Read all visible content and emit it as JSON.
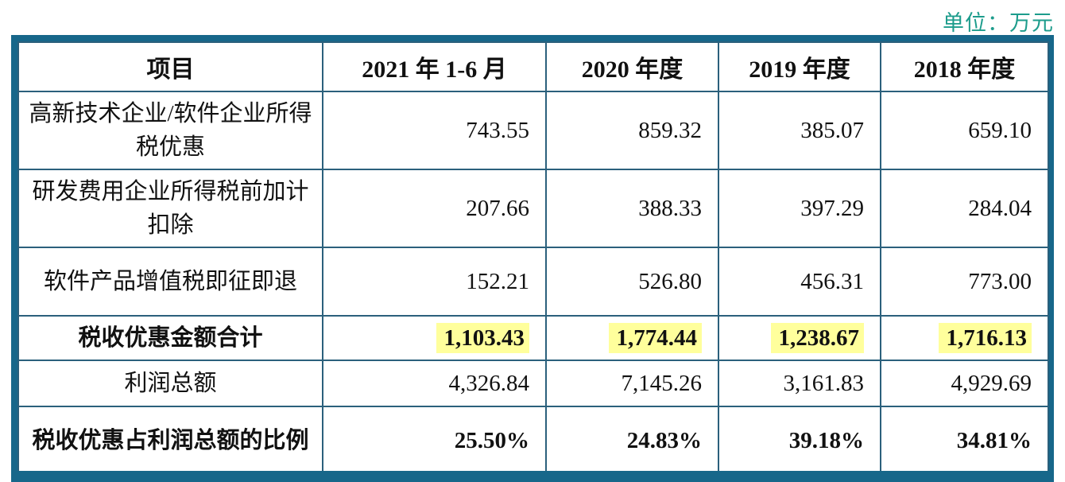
{
  "page": {
    "unit_label": "单位：万元"
  },
  "colors": {
    "table_outer_border": "#17678a",
    "table_inner_border": "#2b607c",
    "unit_text": "#1d9c8c",
    "highlight": "#ffff9c",
    "background": "#ffffff",
    "text": "#111111"
  },
  "table": {
    "columns": [
      "项目",
      "2021 年 1-6 月",
      "2020 年度",
      "2019 年度",
      "2018 年度"
    ],
    "rows": [
      {
        "label": "高新技术企业/软件企业所得税优惠",
        "values": [
          "743.55",
          "859.32",
          "385.07",
          "659.10"
        ]
      },
      {
        "label": "研发费用企业所得税前加计扣除",
        "values": [
          "207.66",
          "388.33",
          "397.29",
          "284.04"
        ]
      },
      {
        "label": "软件产品增值税即征即退",
        "values": [
          "152.21",
          "526.80",
          "456.31",
          "773.00"
        ]
      },
      {
        "label": "税收优惠金额合计",
        "values": [
          "1,103.43",
          "1,774.44",
          "1,238.67",
          "1,716.13"
        ],
        "emphasis": true,
        "highlighted": true
      },
      {
        "label": "利润总额",
        "values": [
          "4,326.84",
          "7,145.26",
          "3,161.83",
          "4,929.69"
        ]
      },
      {
        "label": "税收优惠占利润总额的比例",
        "values": [
          "25.50%",
          "24.83%",
          "39.18%",
          "34.81%"
        ],
        "emphasis": true
      }
    ]
  }
}
